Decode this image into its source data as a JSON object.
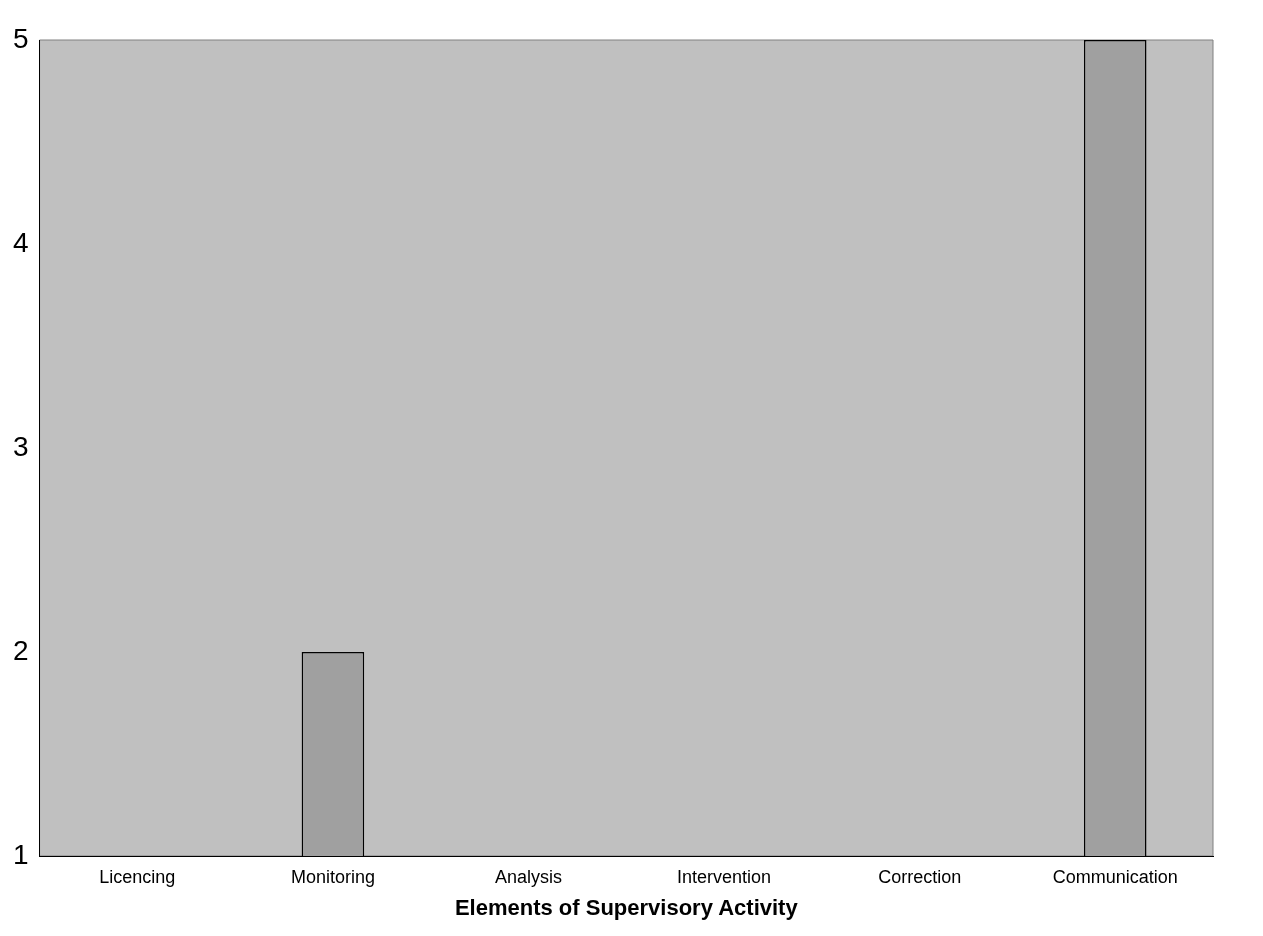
{
  "chart_data": {
    "type": "bar",
    "xlabel": "Elements of Supervisory Activity",
    "categories": [
      "Licencing",
      "Monitoring",
      "Analysis",
      "Intervention",
      "Correction",
      "Communication"
    ],
    "values": [
      1,
      2,
      1,
      1,
      1,
      5
    ],
    "color": "#a0a0a0",
    "ylim": [
      1,
      5
    ],
    "yticks": [
      1,
      2,
      3,
      4,
      5
    ],
    "grid": false,
    "legend": false
  }
}
